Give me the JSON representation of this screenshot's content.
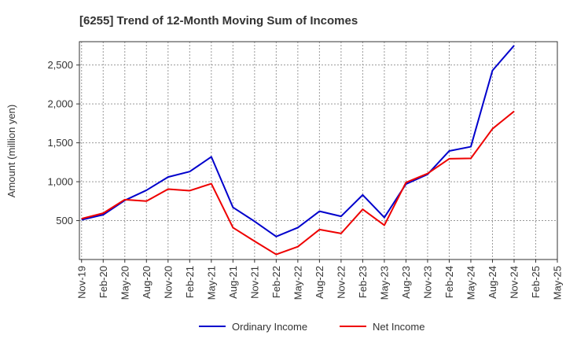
{
  "chart_data": {
    "type": "line",
    "title": "[6255]  Trend of 12-Month Moving Sum of Incomes",
    "xlabel": "",
    "ylabel": "Amount (million yen)",
    "ylim": [
      0,
      2800
    ],
    "yticks": [
      "500",
      "1,000",
      "1,500",
      "2,000",
      "2,500"
    ],
    "ytick_values": [
      500,
      1000,
      1500,
      2000,
      2500
    ],
    "grid": true,
    "legend_position": "bottom",
    "categories": [
      "Nov-19",
      "Feb-20",
      "May-20",
      "Aug-20",
      "Nov-20",
      "Feb-21",
      "May-21",
      "Aug-21",
      "Nov-21",
      "Feb-22",
      "May-22",
      "Aug-22",
      "Nov-22",
      "Feb-23",
      "May-23",
      "Aug-23",
      "Nov-23",
      "Feb-24",
      "May-24",
      "Aug-24",
      "Nov-24",
      "Feb-25",
      "May-25"
    ],
    "series": [
      {
        "name": "Ordinary Income",
        "color": "#0000cc",
        "values": [
          510,
          575,
          760,
          890,
          1060,
          1130,
          1320,
          670,
          490,
          295,
          410,
          620,
          555,
          830,
          540,
          970,
          1095,
          1395,
          1450,
          2430,
          2750,
          null,
          null
        ]
      },
      {
        "name": "Net Income",
        "color": "#ee0000",
        "values": [
          525,
          595,
          770,
          750,
          905,
          885,
          975,
          410,
          235,
          65,
          165,
          385,
          335,
          645,
          440,
          990,
          1105,
          1295,
          1300,
          1680,
          1905,
          null,
          null
        ]
      }
    ]
  }
}
